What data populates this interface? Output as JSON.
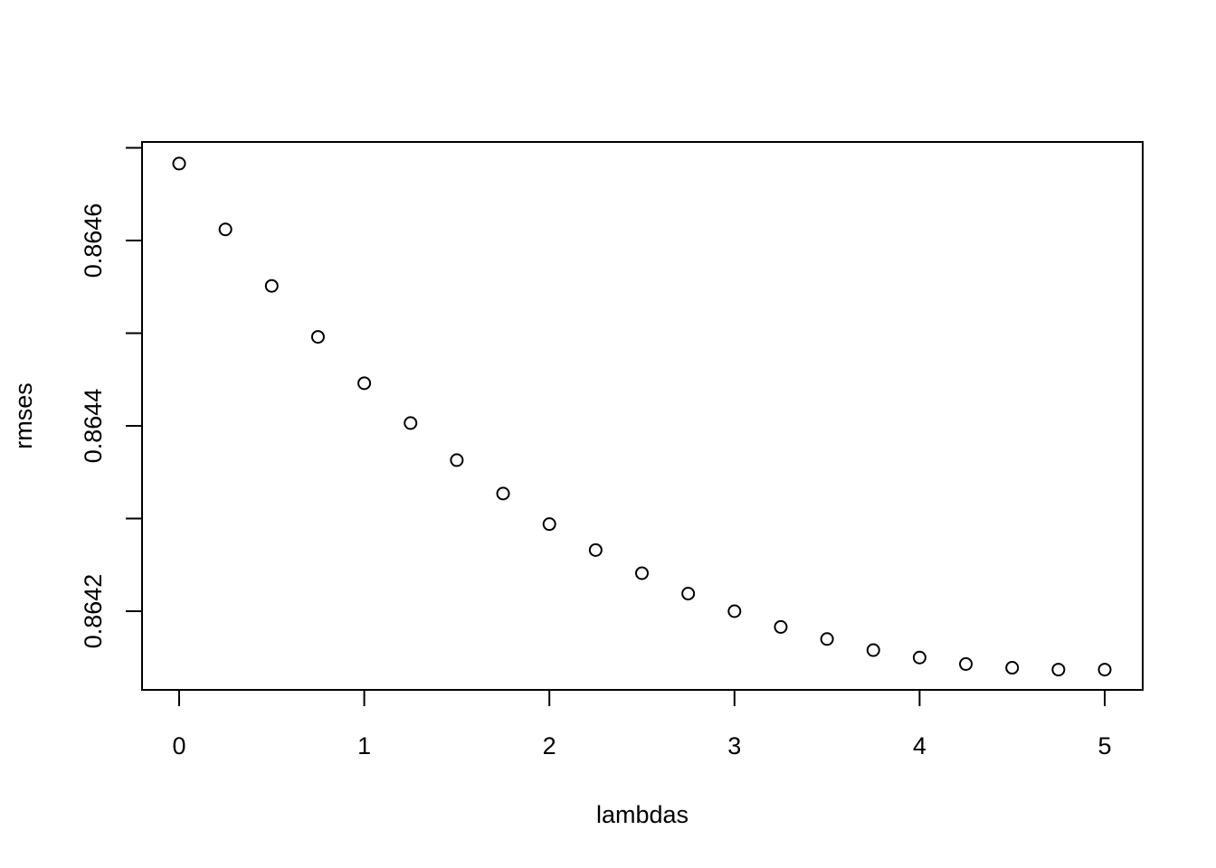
{
  "chart_data": {
    "type": "scatter",
    "title": "",
    "xlabel": "lambdas",
    "ylabel": "rmses",
    "xlim": [
      0,
      5
    ],
    "ylim": [
      0.86413,
      0.86472
    ],
    "x_ticks": [
      0,
      1,
      2,
      3,
      4,
      5
    ],
    "x_tick_labels": [
      "0",
      "1",
      "2",
      "3",
      "4",
      "5"
    ],
    "y_ticks": [
      0.8642,
      0.8643,
      0.8644,
      0.8645,
      0.8646,
      0.8647
    ],
    "y_tick_labels": [
      "0.8642",
      "",
      "0.8644",
      "",
      "0.8646",
      ""
    ],
    "grid": false,
    "legend": "none",
    "marker": "open-circle",
    "color": "#000000",
    "series": [
      {
        "x": [
          0,
          0.25,
          0.5,
          0.75,
          1,
          1.25,
          1.5,
          1.75,
          2,
          2.25,
          2.5,
          2.75,
          3,
          3.25,
          3.5,
          3.75,
          4,
          4.25,
          4.5,
          4.75,
          5
        ],
        "y": [
          0.864683,
          0.864612,
          0.864551,
          0.864496,
          0.864446,
          0.864403,
          0.864363,
          0.864327,
          0.864294,
          0.864266,
          0.864241,
          0.864219,
          0.8642,
          0.864183,
          0.86417,
          0.864158,
          0.86415,
          0.864143,
          0.864139,
          0.864137,
          0.864137
        ]
      }
    ]
  }
}
